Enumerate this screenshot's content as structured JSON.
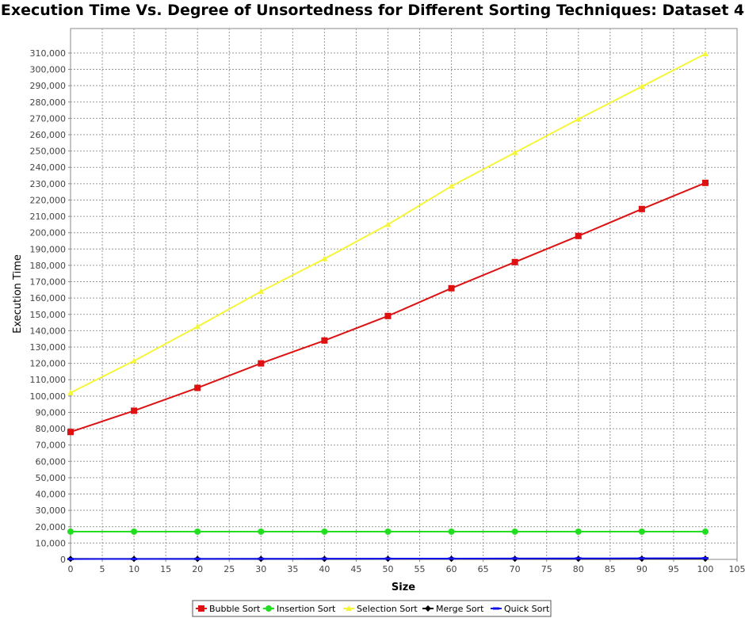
{
  "chart_data": {
    "type": "line",
    "title": "Execution Time Vs. Degree of Unsortedness for Different Sorting Techniques: Dataset 4",
    "xlabel": "Size",
    "ylabel": "Execution Time",
    "xlim": [
      0,
      105
    ],
    "ylim": [
      0,
      325000
    ],
    "x_tick_step": 5,
    "y_tick_step": 10000,
    "grid": true,
    "legend_position": "bottom",
    "x": [
      0,
      10,
      20,
      30,
      40,
      50,
      60,
      70,
      80,
      90,
      100
    ],
    "series": [
      {
        "name": "Bubble Sort",
        "color": "#dd1111",
        "marker": "square",
        "values": [
          78000,
          91000,
          105000,
          120000,
          134000,
          149000,
          166000,
          182000,
          198000,
          214500,
          230500
        ]
      },
      {
        "name": "Insertion Sort",
        "color": "#22dd22",
        "marker": "circle",
        "values": [
          17000,
          17000,
          17000,
          17000,
          17000,
          17000,
          17000,
          17000,
          17000,
          17000,
          17000
        ]
      },
      {
        "name": "Selection Sort",
        "color": "#f5f53a",
        "marker": "triangle",
        "values": [
          102000,
          121500,
          142500,
          164000,
          184000,
          205000,
          228500,
          249000,
          269500,
          289500,
          309500
        ]
      },
      {
        "name": "Merge Sort",
        "color": "#000000",
        "marker": "diamond",
        "values": [
          300,
          300,
          300,
          300,
          300,
          350,
          350,
          350,
          350,
          400,
          400
        ]
      },
      {
        "name": "Quick Sort",
        "color": "#1111ee",
        "marker": "rect",
        "values": [
          200,
          250,
          300,
          350,
          400,
          450,
          500,
          550,
          600,
          650,
          700
        ]
      }
    ]
  }
}
